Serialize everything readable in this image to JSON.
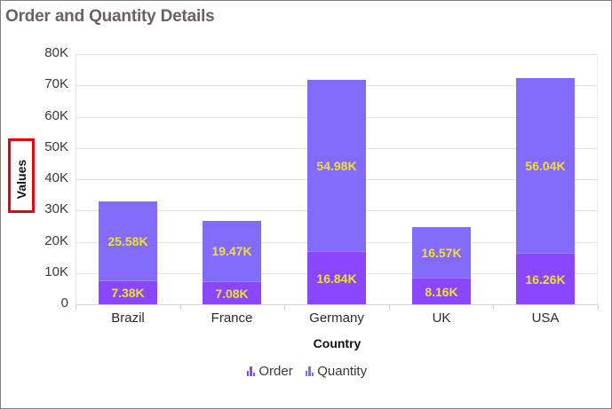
{
  "title": "Order and Quantity Details",
  "chart_data": {
    "type": "bar",
    "stacked": true,
    "title": "Order and Quantity Details",
    "xlabel": "Country",
    "ylabel": "Values",
    "ylim": [
      0,
      80000
    ],
    "yticks": [
      "0",
      "10K",
      "20K",
      "30K",
      "40K",
      "50K",
      "60K",
      "70K",
      "80K"
    ],
    "categories": [
      "Brazil",
      "France",
      "Germany",
      "UK",
      "USA"
    ],
    "series": [
      {
        "name": "Order",
        "color": "#8b46ff",
        "values": [
          7380,
          7080,
          16840,
          8160,
          16260
        ],
        "labels": [
          "7.38K",
          "7.08K",
          "16.84K",
          "8.16K",
          "16.26K"
        ]
      },
      {
        "name": "Quantity",
        "color": "#826afa",
        "values": [
          25580,
          19470,
          54980,
          16570,
          56040
        ],
        "labels": [
          "25.58K",
          "19.47K",
          "54.98K",
          "16.57K",
          "56.04K"
        ]
      }
    ],
    "data_label_color": "#f1e12c",
    "grid": true,
    "legend_position": "bottom"
  },
  "axis": {
    "x_title": "Country",
    "y_title": "Values"
  },
  "legend": [
    {
      "label": "Order",
      "icon": "bar-chart-icon",
      "color": "#8b46ff"
    },
    {
      "label": "Quantity",
      "icon": "bar-chart-icon",
      "color": "#826afa"
    }
  ],
  "highlight": {
    "target": "y-axis-title",
    "color": "#e4000f"
  }
}
